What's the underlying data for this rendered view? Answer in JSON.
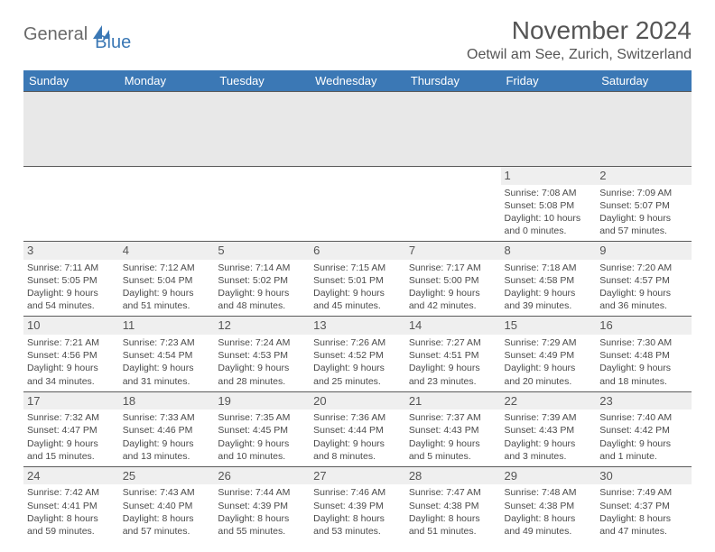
{
  "logo": {
    "text1": "General",
    "text2": "Blue"
  },
  "title": "November 2024",
  "location": "Oetwil am See, Zurich, Switzerland",
  "colors": {
    "header_bg": "#3b78b5",
    "header_text": "#ffffff",
    "daynum_bg": "#efefef",
    "cell_border": "#5a5a5a",
    "body_text": "#4a4a4a",
    "title_text": "#555555",
    "logo_gray": "#6a6a6a",
    "logo_blue": "#3b78b5",
    "spacer_bg": "#e8e8e8",
    "page_bg": "#ffffff"
  },
  "fonts": {
    "title_size": 28,
    "location_size": 16,
    "th_size": 13,
    "daynum_size": 13,
    "cell_size": 10.5
  },
  "weekdays": [
    "Sunday",
    "Monday",
    "Tuesday",
    "Wednesday",
    "Thursday",
    "Friday",
    "Saturday"
  ],
  "weeks": [
    [
      null,
      null,
      null,
      null,
      null,
      {
        "n": "1",
        "sr": "7:08 AM",
        "ss": "5:08 PM",
        "dl": "10 hours and 0 minutes."
      },
      {
        "n": "2",
        "sr": "7:09 AM",
        "ss": "5:07 PM",
        "dl": "9 hours and 57 minutes."
      }
    ],
    [
      {
        "n": "3",
        "sr": "7:11 AM",
        "ss": "5:05 PM",
        "dl": "9 hours and 54 minutes."
      },
      {
        "n": "4",
        "sr": "7:12 AM",
        "ss": "5:04 PM",
        "dl": "9 hours and 51 minutes."
      },
      {
        "n": "5",
        "sr": "7:14 AM",
        "ss": "5:02 PM",
        "dl": "9 hours and 48 minutes."
      },
      {
        "n": "6",
        "sr": "7:15 AM",
        "ss": "5:01 PM",
        "dl": "9 hours and 45 minutes."
      },
      {
        "n": "7",
        "sr": "7:17 AM",
        "ss": "5:00 PM",
        "dl": "9 hours and 42 minutes."
      },
      {
        "n": "8",
        "sr": "7:18 AM",
        "ss": "4:58 PM",
        "dl": "9 hours and 39 minutes."
      },
      {
        "n": "9",
        "sr": "7:20 AM",
        "ss": "4:57 PM",
        "dl": "9 hours and 36 minutes."
      }
    ],
    [
      {
        "n": "10",
        "sr": "7:21 AM",
        "ss": "4:56 PM",
        "dl": "9 hours and 34 minutes."
      },
      {
        "n": "11",
        "sr": "7:23 AM",
        "ss": "4:54 PM",
        "dl": "9 hours and 31 minutes."
      },
      {
        "n": "12",
        "sr": "7:24 AM",
        "ss": "4:53 PM",
        "dl": "9 hours and 28 minutes."
      },
      {
        "n": "13",
        "sr": "7:26 AM",
        "ss": "4:52 PM",
        "dl": "9 hours and 25 minutes."
      },
      {
        "n": "14",
        "sr": "7:27 AM",
        "ss": "4:51 PM",
        "dl": "9 hours and 23 minutes."
      },
      {
        "n": "15",
        "sr": "7:29 AM",
        "ss": "4:49 PM",
        "dl": "9 hours and 20 minutes."
      },
      {
        "n": "16",
        "sr": "7:30 AM",
        "ss": "4:48 PM",
        "dl": "9 hours and 18 minutes."
      }
    ],
    [
      {
        "n": "17",
        "sr": "7:32 AM",
        "ss": "4:47 PM",
        "dl": "9 hours and 15 minutes."
      },
      {
        "n": "18",
        "sr": "7:33 AM",
        "ss": "4:46 PM",
        "dl": "9 hours and 13 minutes."
      },
      {
        "n": "19",
        "sr": "7:35 AM",
        "ss": "4:45 PM",
        "dl": "9 hours and 10 minutes."
      },
      {
        "n": "20",
        "sr": "7:36 AM",
        "ss": "4:44 PM",
        "dl": "9 hours and 8 minutes."
      },
      {
        "n": "21",
        "sr": "7:37 AM",
        "ss": "4:43 PM",
        "dl": "9 hours and 5 minutes."
      },
      {
        "n": "22",
        "sr": "7:39 AM",
        "ss": "4:43 PM",
        "dl": "9 hours and 3 minutes."
      },
      {
        "n": "23",
        "sr": "7:40 AM",
        "ss": "4:42 PM",
        "dl": "9 hours and 1 minute."
      }
    ],
    [
      {
        "n": "24",
        "sr": "7:42 AM",
        "ss": "4:41 PM",
        "dl": "8 hours and 59 minutes."
      },
      {
        "n": "25",
        "sr": "7:43 AM",
        "ss": "4:40 PM",
        "dl": "8 hours and 57 minutes."
      },
      {
        "n": "26",
        "sr": "7:44 AM",
        "ss": "4:39 PM",
        "dl": "8 hours and 55 minutes."
      },
      {
        "n": "27",
        "sr": "7:46 AM",
        "ss": "4:39 PM",
        "dl": "8 hours and 53 minutes."
      },
      {
        "n": "28",
        "sr": "7:47 AM",
        "ss": "4:38 PM",
        "dl": "8 hours and 51 minutes."
      },
      {
        "n": "29",
        "sr": "7:48 AM",
        "ss": "4:38 PM",
        "dl": "8 hours and 49 minutes."
      },
      {
        "n": "30",
        "sr": "7:49 AM",
        "ss": "4:37 PM",
        "dl": "8 hours and 47 minutes."
      }
    ]
  ],
  "labels": {
    "sunrise": "Sunrise:",
    "sunset": "Sunset:",
    "daylight": "Daylight:"
  }
}
